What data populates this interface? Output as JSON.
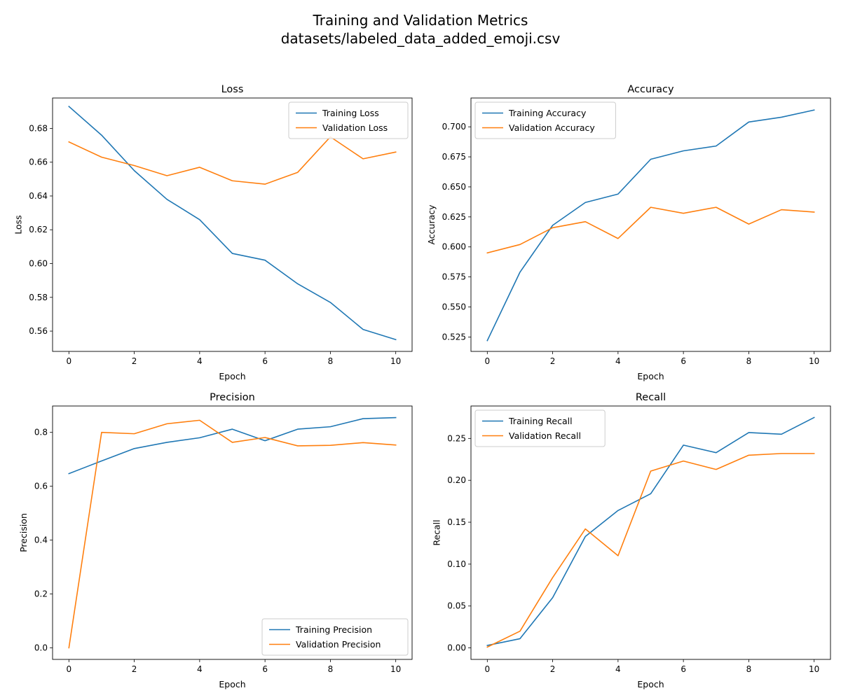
{
  "figure": {
    "title_line1": "Training and Validation Metrics",
    "title_line2": "datasets/labeled_data_added_emoji.csv"
  },
  "colors": {
    "training": "#1f77b4",
    "validation": "#ff7f0e"
  },
  "chart_data": [
    {
      "type": "line",
      "title": "Loss",
      "xlabel": "Epoch",
      "ylabel": "Loss",
      "x": [
        0,
        1,
        2,
        3,
        4,
        5,
        6,
        7,
        8,
        9,
        10
      ],
      "xlim": [
        -0.5,
        10.5
      ],
      "ylim": [
        0.548,
        0.698
      ],
      "xticks": [
        0,
        2,
        4,
        6,
        8,
        10
      ],
      "yticks": [
        0.56,
        0.58,
        0.6,
        0.62,
        0.64,
        0.66,
        0.68
      ],
      "ytick_decimals": 2,
      "legend": "top-right",
      "series": [
        {
          "name": "Training Loss",
          "values": [
            0.693,
            0.676,
            0.655,
            0.638,
            0.626,
            0.606,
            0.602,
            0.588,
            0.577,
            0.561,
            0.555
          ]
        },
        {
          "name": "Validation Loss",
          "values": [
            0.672,
            0.663,
            0.658,
            0.652,
            0.657,
            0.649,
            0.647,
            0.654,
            0.675,
            0.662,
            0.666
          ]
        }
      ]
    },
    {
      "type": "line",
      "title": "Accuracy",
      "xlabel": "Epoch",
      "ylabel": "Accuracy",
      "x": [
        0,
        1,
        2,
        3,
        4,
        5,
        6,
        7,
        8,
        9,
        10
      ],
      "xlim": [
        -0.5,
        10.5
      ],
      "ylim": [
        0.513,
        0.724
      ],
      "xticks": [
        0,
        2,
        4,
        6,
        8,
        10
      ],
      "yticks": [
        0.525,
        0.55,
        0.575,
        0.6,
        0.625,
        0.65,
        0.675,
        0.7
      ],
      "ytick_decimals": 3,
      "legend": "top-left",
      "series": [
        {
          "name": "Training Accuracy",
          "values": [
            0.522,
            0.579,
            0.618,
            0.637,
            0.644,
            0.673,
            0.68,
            0.684,
            0.704,
            0.708,
            0.714
          ]
        },
        {
          "name": "Validation Accuracy",
          "values": [
            0.595,
            0.602,
            0.616,
            0.621,
            0.607,
            0.633,
            0.628,
            0.633,
            0.619,
            0.631,
            0.629
          ]
        }
      ]
    },
    {
      "type": "line",
      "title": "Precision",
      "xlabel": "Epoch",
      "ylabel": "Precision",
      "x": [
        0,
        1,
        2,
        3,
        4,
        5,
        6,
        7,
        8,
        9,
        10
      ],
      "xlim": [
        -0.5,
        10.5
      ],
      "ylim": [
        -0.043,
        0.898
      ],
      "xticks": [
        0,
        2,
        4,
        6,
        8,
        10
      ],
      "yticks": [
        0.0,
        0.2,
        0.4,
        0.6,
        0.8
      ],
      "ytick_decimals": 1,
      "legend": "bottom-right",
      "series": [
        {
          "name": "Training Precision",
          "values": [
            0.647,
            0.694,
            0.74,
            0.763,
            0.78,
            0.812,
            0.769,
            0.812,
            0.821,
            0.851,
            0.855
          ]
        },
        {
          "name": "Validation Precision",
          "values": [
            0.0,
            0.8,
            0.795,
            0.832,
            0.845,
            0.763,
            0.781,
            0.75,
            0.752,
            0.762,
            0.753
          ]
        }
      ]
    },
    {
      "type": "line",
      "title": "Recall",
      "xlabel": "Epoch",
      "ylabel": "Recall",
      "x": [
        0,
        1,
        2,
        3,
        4,
        5,
        6,
        7,
        8,
        9,
        10
      ],
      "xlim": [
        -0.5,
        10.5
      ],
      "ylim": [
        -0.0137,
        0.2887
      ],
      "xticks": [
        0,
        2,
        4,
        6,
        8,
        10
      ],
      "yticks": [
        0.0,
        0.05,
        0.1,
        0.15,
        0.2,
        0.25
      ],
      "ytick_decimals": 2,
      "legend": "top-left",
      "series": [
        {
          "name": "Training Recall",
          "values": [
            0.003,
            0.011,
            0.06,
            0.133,
            0.164,
            0.184,
            0.242,
            0.233,
            0.257,
            0.255,
            0.275
          ]
        },
        {
          "name": "Validation Recall",
          "values": [
            0.001,
            0.02,
            0.084,
            0.142,
            0.11,
            0.211,
            0.223,
            0.213,
            0.23,
            0.232,
            0.232
          ]
        }
      ]
    }
  ]
}
